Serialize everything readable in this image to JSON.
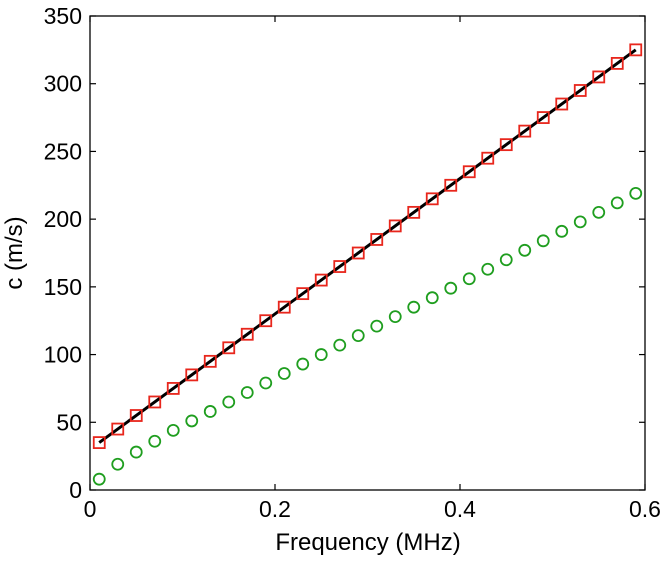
{
  "chart_data": {
    "type": "scatter",
    "title": "",
    "xlabel": "Frequency (MHz)",
    "ylabel": "c (m/s)",
    "xlim": [
      0,
      0.6
    ],
    "ylim": [
      0,
      350
    ],
    "xticks": [
      0,
      0.2,
      0.4,
      0.6
    ],
    "xtick_labels": [
      "0",
      "0.2",
      "0.4",
      "0.6"
    ],
    "yticks": [
      0,
      50,
      100,
      150,
      200,
      250,
      300,
      350
    ],
    "ytick_labels": [
      "0",
      "50",
      "100",
      "150",
      "200",
      "250",
      "300",
      "350"
    ],
    "grid": false,
    "legend": "none",
    "series": [
      {
        "marker": "square",
        "color": "#e8261c",
        "x": [
          0.01,
          0.03,
          0.05,
          0.07,
          0.09,
          0.11,
          0.13,
          0.15,
          0.17,
          0.19,
          0.21,
          0.23,
          0.25,
          0.27,
          0.29,
          0.31,
          0.33,
          0.35,
          0.37,
          0.39,
          0.41,
          0.43,
          0.45,
          0.47,
          0.49,
          0.51,
          0.53,
          0.55,
          0.57,
          0.59
        ],
        "y": [
          35,
          45,
          55,
          65,
          75,
          85,
          95,
          105,
          115,
          125,
          135,
          145,
          155,
          165,
          175,
          185,
          195,
          205,
          215,
          225,
          235,
          245,
          255,
          265,
          275,
          285,
          295,
          305,
          315,
          325
        ]
      },
      {
        "marker": "circle",
        "color": "#1f9e1f",
        "x": [
          0.01,
          0.03,
          0.05,
          0.07,
          0.09,
          0.11,
          0.13,
          0.15,
          0.17,
          0.19,
          0.21,
          0.23,
          0.25,
          0.27,
          0.29,
          0.31,
          0.33,
          0.35,
          0.37,
          0.39,
          0.41,
          0.43,
          0.45,
          0.47,
          0.49,
          0.51,
          0.53,
          0.55,
          0.57,
          0.59
        ],
        "y": [
          8,
          19,
          28,
          36,
          44,
          51,
          58,
          65,
          72,
          79,
          86,
          93,
          100,
          107,
          114,
          121,
          128,
          135,
          142,
          149,
          156,
          163,
          170,
          177,
          184,
          191,
          198,
          205,
          212,
          219
        ]
      }
    ],
    "fit_line": {
      "color": "#000000",
      "x": [
        0.01,
        0.59
      ],
      "y": [
        35,
        325
      ]
    }
  }
}
